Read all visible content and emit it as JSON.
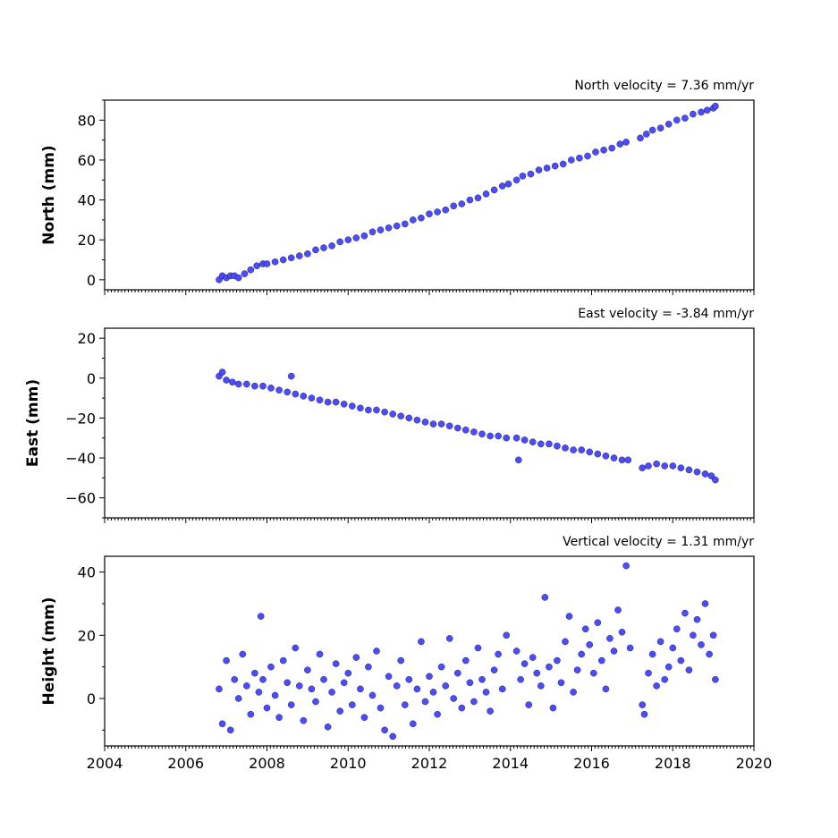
{
  "chart_data": [
    {
      "type": "scatter",
      "title": "North velocity = 7.36 mm/yr",
      "xlabel": "",
      "ylabel": "North (mm)",
      "xlim": [
        2004,
        2020
      ],
      "ylim": [
        -5,
        90
      ],
      "yticks": [
        0,
        20,
        40,
        60,
        80
      ],
      "xticks": [
        2004,
        2006,
        2008,
        2010,
        2012,
        2014,
        2016,
        2018,
        2020
      ],
      "show_xtick_labels": false,
      "grid": false,
      "velocity_mm_per_yr": 7.36,
      "marker_color": "#4b4bff",
      "series": [
        {
          "x": [
            2006.82,
            2006.9,
            2007.0,
            2007.1,
            2007.2,
            2007.3,
            2007.45,
            2007.6,
            2007.75,
            2007.9,
            2008.0,
            2008.2,
            2008.4,
            2008.6,
            2008.8,
            2009.0,
            2009.2,
            2009.4,
            2009.6,
            2009.8,
            2010.0,
            2010.2,
            2010.4,
            2010.6,
            2010.8,
            2011.0,
            2011.2,
            2011.4,
            2011.6,
            2011.8,
            2012.0,
            2012.2,
            2012.4,
            2012.6,
            2012.8,
            2013.0,
            2013.2,
            2013.4,
            2013.6,
            2013.8,
            2013.95,
            2014.15,
            2014.3,
            2014.5,
            2014.7,
            2014.9,
            2015.1,
            2015.3,
            2015.5,
            2015.7,
            2015.9,
            2016.1,
            2016.3,
            2016.5,
            2016.7,
            2016.85,
            2017.2,
            2017.35,
            2017.5,
            2017.7,
            2017.9,
            2018.1,
            2018.3,
            2018.5,
            2018.7,
            2018.85,
            2019.0,
            2019.05
          ],
          "y": [
            0,
            2,
            1,
            2,
            2,
            1,
            3,
            5,
            7,
            8,
            8,
            9,
            10,
            11,
            12,
            13,
            15,
            16,
            17,
            19,
            20,
            21,
            22,
            24,
            25,
            26,
            27,
            28,
            30,
            31,
            33,
            34,
            35,
            37,
            38,
            40,
            41,
            43,
            45,
            47,
            48,
            50,
            52,
            53,
            55,
            56,
            57,
            58,
            60,
            61,
            62,
            64,
            65,
            66,
            68,
            69,
            71,
            73,
            75,
            76,
            78,
            80,
            81,
            83,
            84,
            85,
            86,
            87
          ]
        }
      ]
    },
    {
      "type": "scatter",
      "title": "East velocity = -3.84 mm/yr",
      "xlabel": "",
      "ylabel": "East (mm)",
      "xlim": [
        2004,
        2020
      ],
      "ylim": [
        -70,
        25
      ],
      "yticks": [
        -60,
        -40,
        -20,
        0,
        20
      ],
      "xticks": [
        2004,
        2006,
        2008,
        2010,
        2012,
        2014,
        2016,
        2018,
        2020
      ],
      "show_xtick_labels": false,
      "grid": false,
      "velocity_mm_per_yr": -3.84,
      "marker_color": "#4b4bff",
      "series": [
        {
          "x": [
            2006.82,
            2006.9,
            2007.0,
            2007.15,
            2007.3,
            2007.5,
            2007.7,
            2007.9,
            2008.1,
            2008.3,
            2008.5,
            2008.6,
            2008.7,
            2008.9,
            2009.1,
            2009.3,
            2009.5,
            2009.7,
            2009.9,
            2010.1,
            2010.3,
            2010.5,
            2010.7,
            2010.9,
            2011.1,
            2011.3,
            2011.5,
            2011.7,
            2011.9,
            2012.1,
            2012.3,
            2012.5,
            2012.7,
            2012.9,
            2013.1,
            2013.3,
            2013.5,
            2013.7,
            2013.9,
            2014.15,
            2014.2,
            2014.35,
            2014.55,
            2014.75,
            2014.95,
            2015.15,
            2015.35,
            2015.55,
            2015.75,
            2015.95,
            2016.15,
            2016.35,
            2016.55,
            2016.75,
            2016.9,
            2017.25,
            2017.4,
            2017.6,
            2017.8,
            2018.0,
            2018.2,
            2018.4,
            2018.6,
            2018.8,
            2018.95,
            2019.05
          ],
          "y": [
            1,
            3,
            -1,
            -2,
            -3,
            -3,
            -4,
            -4,
            -5,
            -6,
            -7,
            1,
            -8,
            -9,
            -10,
            -11,
            -12,
            -12,
            -13,
            -14,
            -15,
            -16,
            -16,
            -17,
            -18,
            -19,
            -20,
            -21,
            -22,
            -23,
            -23,
            -24,
            -25,
            -26,
            -27,
            -28,
            -29,
            -29,
            -30,
            -30,
            -41,
            -31,
            -32,
            -33,
            -33,
            -34,
            -35,
            -36,
            -36,
            -37,
            -38,
            -39,
            -40,
            -41,
            -41,
            -45,
            -44,
            -43,
            -44,
            -44,
            -45,
            -46,
            -47,
            -48,
            -49,
            -51
          ]
        }
      ]
    },
    {
      "type": "scatter",
      "title": "Vertical velocity = 1.31 mm/yr",
      "xlabel": "",
      "ylabel": "Height (mm)",
      "xlim": [
        2004,
        2020
      ],
      "ylim": [
        -15,
        45
      ],
      "yticks": [
        0,
        20,
        40
      ],
      "xticks": [
        2004,
        2006,
        2008,
        2010,
        2012,
        2014,
        2016,
        2018,
        2020
      ],
      "xtick_labels": [
        "2004",
        "2006",
        "2008",
        "2010",
        "2012",
        "2014",
        "2016",
        "2018",
        "2020"
      ],
      "show_xtick_labels": true,
      "grid": false,
      "velocity_mm_per_yr": 1.31,
      "marker_color": "#4b4bff",
      "series": [
        {
          "x": [
            2006.82,
            2006.9,
            2007.0,
            2007.1,
            2007.2,
            2007.3,
            2007.4,
            2007.5,
            2007.6,
            2007.7,
            2007.8,
            2007.85,
            2007.9,
            2008.0,
            2008.1,
            2008.2,
            2008.3,
            2008.4,
            2008.5,
            2008.6,
            2008.7,
            2008.8,
            2008.9,
            2009.0,
            2009.1,
            2009.2,
            2009.3,
            2009.4,
            2009.5,
            2009.6,
            2009.7,
            2009.8,
            2009.9,
            2010.0,
            2010.1,
            2010.2,
            2010.3,
            2010.4,
            2010.5,
            2010.6,
            2010.7,
            2010.8,
            2010.9,
            2011.0,
            2011.1,
            2011.2,
            2011.3,
            2011.4,
            2011.5,
            2011.6,
            2011.7,
            2011.8,
            2011.9,
            2012.0,
            2012.1,
            2012.2,
            2012.3,
            2012.4,
            2012.5,
            2012.6,
            2012.7,
            2012.8,
            2012.9,
            2013.0,
            2013.1,
            2013.2,
            2013.3,
            2013.4,
            2013.5,
            2013.6,
            2013.7,
            2013.8,
            2013.9,
            2014.15,
            2014.25,
            2014.35,
            2014.45,
            2014.55,
            2014.65,
            2014.75,
            2014.85,
            2014.95,
            2015.05,
            2015.15,
            2015.25,
            2015.35,
            2015.45,
            2015.55,
            2015.65,
            2015.75,
            2015.85,
            2015.95,
            2016.05,
            2016.15,
            2016.25,
            2016.35,
            2016.45,
            2016.55,
            2016.65,
            2016.75,
            2016.85,
            2016.95,
            2017.25,
            2017.3,
            2017.4,
            2017.5,
            2017.6,
            2017.7,
            2017.8,
            2017.9,
            2018.0,
            2018.1,
            2018.2,
            2018.3,
            2018.4,
            2018.5,
            2018.6,
            2018.7,
            2018.8,
            2018.9,
            2019.0,
            2019.05
          ],
          "y": [
            3,
            -8,
            12,
            -10,
            6,
            0,
            14,
            4,
            -5,
            8,
            2,
            26,
            6,
            -3,
            10,
            1,
            -6,
            12,
            5,
            -2,
            16,
            4,
            -7,
            9,
            3,
            -1,
            14,
            6,
            -9,
            2,
            11,
            -4,
            5,
            8,
            -2,
            13,
            3,
            -6,
            10,
            1,
            15,
            -3,
            -10,
            7,
            -12,
            4,
            12,
            -2,
            6,
            -8,
            3,
            18,
            -1,
            7,
            2,
            -5,
            10,
            4,
            19,
            0,
            8,
            -3,
            12,
            5,
            -1,
            16,
            6,
            2,
            -4,
            9,
            14,
            3,
            20,
            15,
            6,
            11,
            -2,
            13,
            8,
            4,
            32,
            10,
            -3,
            12,
            5,
            18,
            26,
            2,
            9,
            14,
            22,
            17,
            8,
            24,
            12,
            3,
            19,
            15,
            28,
            21,
            42,
            16,
            -2,
            -5,
            8,
            14,
            4,
            18,
            6,
            10,
            16,
            22,
            12,
            27,
            9,
            20,
            25,
            17,
            30,
            14,
            20,
            6
          ]
        }
      ]
    }
  ]
}
